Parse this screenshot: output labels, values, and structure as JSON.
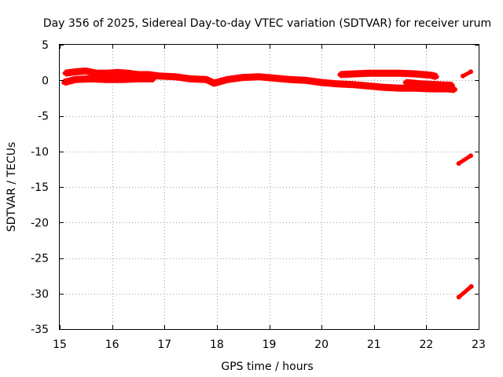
{
  "chart_data": {
    "type": "line",
    "title": "Day 356 of 2025, Sidereal Day-to-day VTEC variation (SDTVAR) for receiver urum",
    "xlabel": "GPS time / hours",
    "ylabel": "SDTVAR / TECUs",
    "xlim": [
      15,
      23
    ],
    "ylim": [
      -35,
      5
    ],
    "xticks": [
      15,
      16,
      17,
      18,
      19,
      20,
      21,
      22,
      23
    ],
    "yticks": [
      5,
      0,
      -5,
      -10,
      -15,
      -20,
      -25,
      -30,
      -35
    ],
    "grid": true,
    "legend": "none",
    "series_color": "#ff0000",
    "series": [
      {
        "values": [
          {
            "x": 15.1,
            "y": 1.0
          },
          {
            "x": 15.3,
            "y": 1.2
          },
          {
            "x": 15.5,
            "y": 1.3
          },
          {
            "x": 15.7,
            "y": 1.0
          },
          {
            "x": 15.9,
            "y": 1.0
          },
          {
            "x": 16.1,
            "y": 1.1
          },
          {
            "x": 16.3,
            "y": 1.0
          },
          {
            "x": 16.5,
            "y": 0.8
          },
          {
            "x": 16.7,
            "y": 0.8
          },
          {
            "x": 16.9,
            "y": 0.6
          },
          {
            "x": 17.2,
            "y": 0.5
          },
          {
            "x": 17.5,
            "y": 0.2
          },
          {
            "x": 17.8,
            "y": 0.1
          },
          {
            "x": 17.95,
            "y": -0.4
          },
          {
            "x": 18.2,
            "y": 0.1
          },
          {
            "x": 18.5,
            "y": 0.4
          },
          {
            "x": 18.8,
            "y": 0.5
          },
          {
            "x": 19.1,
            "y": 0.3
          },
          {
            "x": 19.4,
            "y": 0.1
          },
          {
            "x": 19.7,
            "y": 0.0
          },
          {
            "x": 20.0,
            "y": -0.3
          },
          {
            "x": 20.3,
            "y": -0.5
          },
          {
            "x": 20.6,
            "y": -0.6
          },
          {
            "x": 20.9,
            "y": -0.8
          },
          {
            "x": 21.2,
            "y": -1.0
          },
          {
            "x": 21.5,
            "y": -1.1
          },
          {
            "x": 21.8,
            "y": -1.1
          },
          {
            "x": 22.1,
            "y": -1.2
          },
          {
            "x": 22.4,
            "y": -1.2
          },
          {
            "x": 22.55,
            "y": -1.3
          }
        ]
      },
      {
        "values": [
          {
            "x": 15.08,
            "y": -0.3
          },
          {
            "x": 15.3,
            "y": 0.1
          },
          {
            "x": 15.6,
            "y": 0.2
          },
          {
            "x": 15.9,
            "y": 0.1
          },
          {
            "x": 16.2,
            "y": 0.1
          },
          {
            "x": 16.5,
            "y": 0.2
          },
          {
            "x": 16.8,
            "y": 0.2
          }
        ]
      },
      {
        "values": [
          {
            "x": 20.35,
            "y": 0.8
          },
          {
            "x": 20.6,
            "y": 0.9
          },
          {
            "x": 20.9,
            "y": 1.0
          },
          {
            "x": 21.2,
            "y": 1.0
          },
          {
            "x": 21.5,
            "y": 1.0
          },
          {
            "x": 21.8,
            "y": 0.9
          },
          {
            "x": 22.1,
            "y": 0.7
          },
          {
            "x": 22.2,
            "y": 0.5
          }
        ]
      },
      {
        "values": [
          {
            "x": 21.6,
            "y": -0.3
          },
          {
            "x": 21.9,
            "y": -0.5
          },
          {
            "x": 22.2,
            "y": -0.6
          },
          {
            "x": 22.5,
            "y": -0.7
          }
        ]
      },
      {
        "values": [
          {
            "x": 22.7,
            "y": 0.6
          },
          {
            "x": 22.85,
            "y": 1.2
          }
        ]
      },
      {
        "values": [
          {
            "x": 22.62,
            "y": -11.7
          },
          {
            "x": 22.85,
            "y": -10.6
          }
        ]
      },
      {
        "values": [
          {
            "x": 22.62,
            "y": -30.5
          },
          {
            "x": 22.86,
            "y": -29.0
          }
        ]
      }
    ]
  }
}
